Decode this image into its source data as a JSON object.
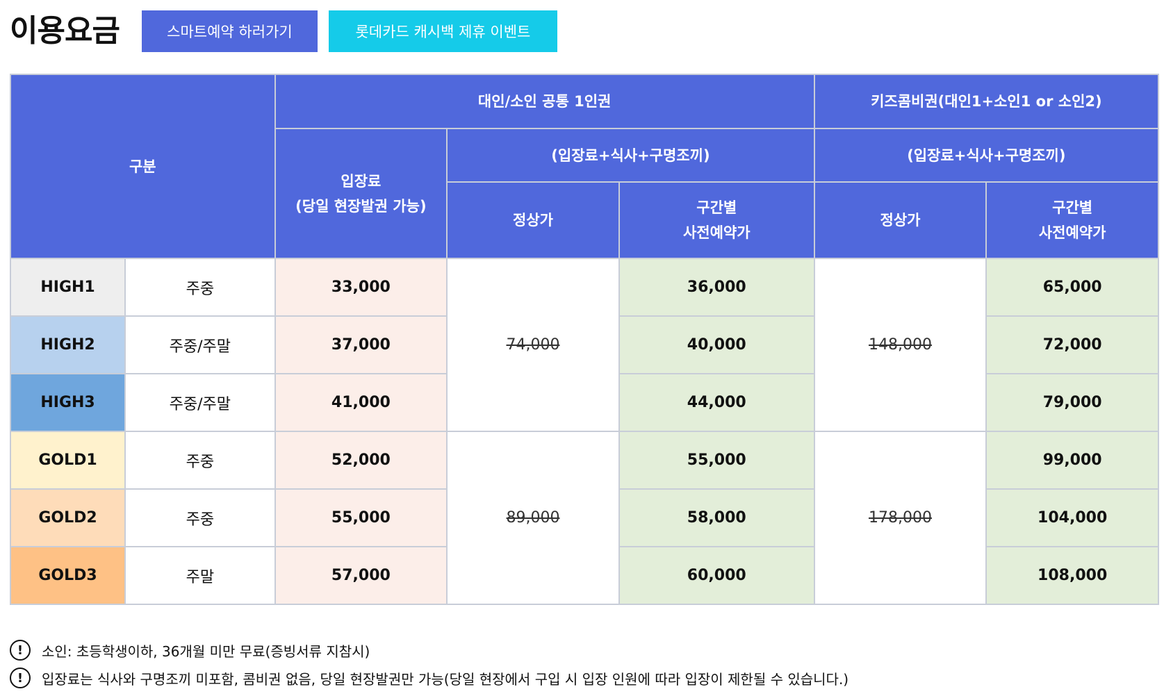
{
  "header": {
    "title": "이용요금",
    "smart_reservation_label": "스마트예약 하러가기",
    "lotte_event_label": "롯데카드 캐시백 제휴 이벤트"
  },
  "table": {
    "col_category": "구분",
    "col_entry_line1": "입장료",
    "col_entry_line2": "(당일 현장발권 가능)",
    "group_single": "대인/소인 공통 1인권",
    "group_kids": "키즈콤비권(대인1+소인1 or 소인2)",
    "sub_single": "(입장료+식사+구명조끼)",
    "sub_kids": "(입장료+식사+구명조끼)",
    "regular_price_label": "정상가",
    "reserve_label_line1": "구간별",
    "reserve_label_line2": "사전예약가",
    "rows": [
      {
        "grade": "HIGH1",
        "days": "주중",
        "entry": "33,000",
        "single_reserve": "36,000",
        "kids_reserve": "65,000"
      },
      {
        "grade": "HIGH2",
        "days": "주중/주말",
        "entry": "37,000",
        "single_reserve": "40,000",
        "kids_reserve": "72,000"
      },
      {
        "grade": "HIGH3",
        "days": "주중/주말",
        "entry": "41,000",
        "single_reserve": "44,000",
        "kids_reserve": "79,000"
      },
      {
        "grade": "GOLD1",
        "days": "주중",
        "entry": "52,000",
        "single_reserve": "55,000",
        "kids_reserve": "99,000"
      },
      {
        "grade": "GOLD2",
        "days": "주중",
        "entry": "55,000",
        "single_reserve": "58,000",
        "kids_reserve": "104,000"
      },
      {
        "grade": "GOLD3",
        "days": "주말",
        "entry": "57,000",
        "single_reserve": "60,000",
        "kids_reserve": "108,000"
      }
    ],
    "high_single_regular": "74,000",
    "high_kids_regular": "148,000",
    "gold_single_regular": "89,000",
    "gold_kids_regular": "178,000"
  },
  "notes": {
    "icon": "!",
    "items": [
      "소인: 초등학생이하, 36개월 미만 무료(증빙서류 지참시)",
      "입장료는 식사와 구명조끼 미포함, 콤비권 없음, 당일 현장발권만 가능(당일 현장에서 구입 시 입장 인원에 따라 입장이 제한될 수 있습니다.)"
    ]
  },
  "colors": {
    "header_blue": "#5068dc",
    "event_cyan": "#15cbe9",
    "high1": "#eeeeee",
    "high2": "#b7d1ee",
    "high3": "#6fa6dd",
    "gold1": "#fff2cd",
    "gold2": "#fedcb9",
    "gold3": "#fec185",
    "entry_bg": "#fceee9",
    "reserve_bg": "#e3eed9"
  }
}
